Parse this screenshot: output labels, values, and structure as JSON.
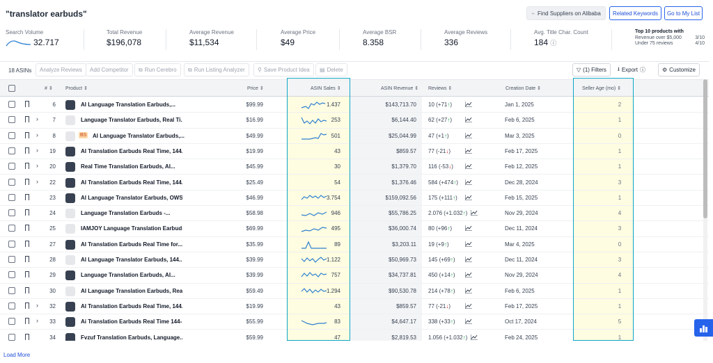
{
  "header": {
    "title": "\"translator earbuds\"",
    "find_suppliers": "Find Suppliers on Alibaba",
    "related_keywords": "Related Keywords",
    "go_to_list": "Go to My List"
  },
  "stats": [
    {
      "label": "Search Volume",
      "value": "32.717"
    },
    {
      "label": "Total Revenue",
      "value": "$196,078"
    },
    {
      "label": "Average Revenue",
      "value": "$11,534"
    },
    {
      "label": "Average Price",
      "value": "$49"
    },
    {
      "label": "Average BSR",
      "value": "8.358"
    },
    {
      "label": "Average Reviews",
      "value": "336"
    },
    {
      "label": "Avg. Title Char. Count",
      "value": "184"
    }
  ],
  "top10": {
    "title": "Top 10 products with",
    "r1_label": "Revenue over $5,000",
    "r1_value": "3/10",
    "r2_label": "Under 75 reviews",
    "r2_value": "4/10"
  },
  "toolbar": {
    "asins": "18 ASINs",
    "analyze_reviews": "Analyze Reviews",
    "add_competitor": "Add Competitor",
    "run_cerebro": "Run Cerebro",
    "run_listing_analyzer": "Run Listing Analyzer",
    "save_product_idea": "Save Product Idea",
    "delete": "Delete",
    "filters": "(1) Filters",
    "export": "Export",
    "customize": "Customize"
  },
  "columns": {
    "num": "#",
    "product": "Product",
    "price": "Price",
    "asin_sales": "ASIN Sales",
    "asin_revenue": "ASIN Revenue",
    "reviews": "Reviews",
    "creation_date": "Creation Date",
    "seller_age": "Seller Age (mo)"
  },
  "rows": [
    {
      "num": "6",
      "name": "AI Language Translation Earbuds,...",
      "price": "$99.99",
      "sales": "1.437",
      "revenue": "$143,713.70",
      "reviews": "10",
      "delta": "(+71",
      "dir": "up",
      "date": "Jan 1, 2025",
      "age": "2",
      "expand": false,
      "bs": false
    },
    {
      "num": "7",
      "name": "Language Translator Earbuds, Real Ti...",
      "price": "$16.99",
      "sales": "253",
      "revenue": "$6,144.40",
      "reviews": "62",
      "delta": "(+27",
      "dir": "up",
      "date": "Feb 6, 2025",
      "age": "1",
      "expand": true,
      "bs": false
    },
    {
      "num": "8",
      "name": "AI Language Translator Earbuds,...",
      "price": "$49.99",
      "sales": "501",
      "revenue": "$25,044.99",
      "reviews": "47",
      "delta": "(+1",
      "dir": "up",
      "date": "Mar 3, 2025",
      "age": "0",
      "expand": true,
      "bs": true
    },
    {
      "num": "19",
      "name": "AI Translation Earbuds Real Time, 144...",
      "price": "$19.99",
      "sales": "43",
      "revenue": "$859.57",
      "reviews": "77",
      "delta": "(-21",
      "dir": "down",
      "date": "Feb 17, 2025",
      "age": "1",
      "expand": true,
      "bs": false
    },
    {
      "num": "20",
      "name": "Real Time Translation Earbuds, AI...",
      "price": "$45.99",
      "sales": "30",
      "revenue": "$1,379.70",
      "reviews": "116",
      "delta": "(-53",
      "dir": "down",
      "date": "Feb 12, 2025",
      "age": "1",
      "expand": true,
      "bs": false
    },
    {
      "num": "22",
      "name": "AI Translation Earbuds Real Time, 144...",
      "price": "$25.49",
      "sales": "54",
      "revenue": "$1,376.46",
      "reviews": "584",
      "delta": "(+474",
      "dir": "up",
      "date": "Dec 28, 2024",
      "age": "3",
      "expand": true,
      "bs": false
    },
    {
      "num": "23",
      "name": "AI Language Translator Earbuds, OWS...",
      "price": "$46.99",
      "sales": "3.754",
      "revenue": "$159,092.56",
      "reviews": "175",
      "delta": "(+111",
      "dir": "up",
      "date": "Feb 15, 2025",
      "age": "1",
      "expand": false,
      "bs": false
    },
    {
      "num": "24",
      "name": "Language Translation Earbuds -...",
      "price": "$58.98",
      "sales": "946",
      "revenue": "$55,786.25",
      "reviews": "2.076",
      "delta": "(+1.032",
      "dir": "up",
      "date": "Nov 29, 2024",
      "age": "4",
      "expand": false,
      "bs": false
    },
    {
      "num": "25",
      "name": "IAMJOY Language Translation Earbuds,...",
      "price": "$69.99",
      "sales": "495",
      "revenue": "$36,000.74",
      "reviews": "80",
      "delta": "(+96",
      "dir": "up",
      "date": "Dec 11, 2024",
      "age": "3",
      "expand": false,
      "bs": false
    },
    {
      "num": "27",
      "name": "AI Translation Earbuds Real Time for...",
      "price": "$35.99",
      "sales": "89",
      "revenue": "$3,203.11",
      "reviews": "19",
      "delta": "(+9",
      "dir": "up",
      "date": "Mar 4, 2025",
      "age": "0",
      "expand": false,
      "bs": false
    },
    {
      "num": "28",
      "name": "AI Language Translator Earbuds, 144...",
      "price": "$39.99",
      "sales": "1.122",
      "revenue": "$50,969.73",
      "reviews": "145",
      "delta": "(+69",
      "dir": "up",
      "date": "Dec 11, 2024",
      "age": "3",
      "expand": false,
      "bs": false
    },
    {
      "num": "29",
      "name": "Language Translation Earbuds, AI...",
      "price": "$39.99",
      "sales": "757",
      "revenue": "$34,737.81",
      "reviews": "450",
      "delta": "(+14",
      "dir": "up",
      "date": "Nov 29, 2024",
      "age": "4",
      "expand": false,
      "bs": false
    },
    {
      "num": "30",
      "name": "AI Language Translation Earbuds, Real-...",
      "price": "$59.49",
      "sales": "1.294",
      "revenue": "$90,530.78",
      "reviews": "214",
      "delta": "(+78",
      "dir": "up",
      "date": "Feb 6, 2025",
      "age": "1",
      "expand": false,
      "bs": false
    },
    {
      "num": "32",
      "name": "AI Translation Earbuds Real Time, 144...",
      "price": "$19.99",
      "sales": "43",
      "revenue": "$859.57",
      "reviews": "77",
      "delta": "(-21",
      "dir": "down",
      "date": "Feb 17, 2025",
      "age": "1",
      "expand": true,
      "bs": false
    },
    {
      "num": "33",
      "name": "Ai Translation Earbuds Real Time 144-...",
      "price": "$55.99",
      "sales": "83",
      "revenue": "$4,647.17",
      "reviews": "338",
      "delta": "(+33",
      "dir": "up",
      "date": "Oct 17, 2024",
      "age": "5",
      "expand": true,
      "bs": false
    },
    {
      "num": "34",
      "name": "Fvzuf Translation Earbuds, Language...",
      "price": "$59.99",
      "sales": "47",
      "revenue": "$2,819.53",
      "reviews": "1.056",
      "delta": "(+1.032",
      "dir": "up",
      "date": "Feb 24, 2025",
      "age": "1",
      "expand": false,
      "bs": false
    }
  ],
  "load_more": "Load More",
  "colors": {
    "accent": "#2563eb",
    "highlight": "#0ea5c6",
    "spark": "#2f80d1"
  }
}
